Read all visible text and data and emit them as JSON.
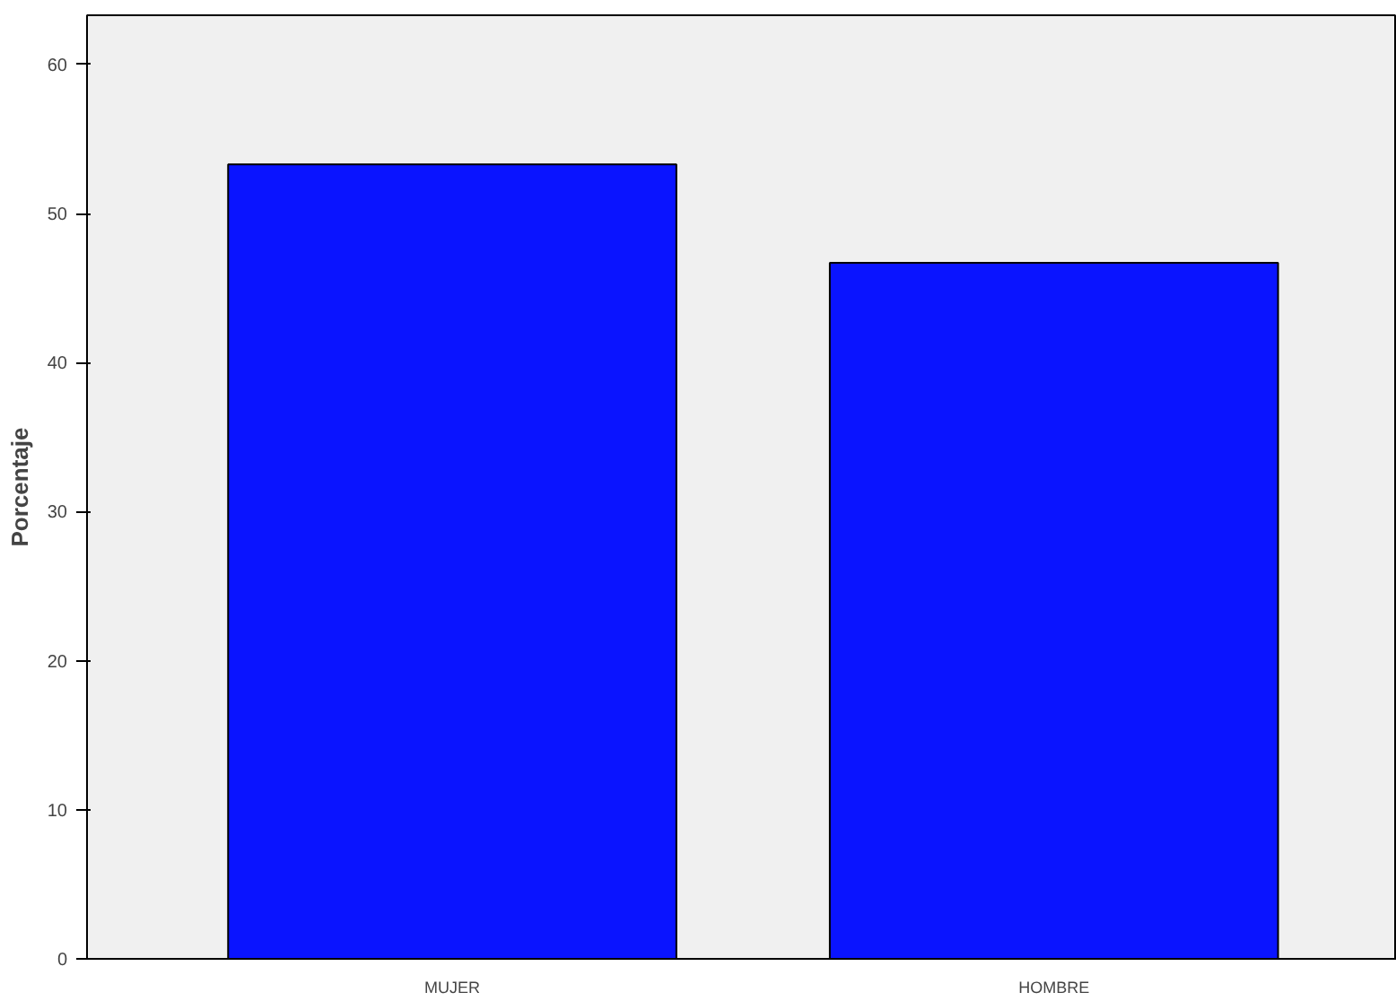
{
  "chart_data": {
    "type": "bar",
    "ylabel": "Porcentaje",
    "categories": [
      "MUJER",
      "HOMBRE"
    ],
    "values": [
      53.3,
      46.7
    ],
    "color": "#0a14ff",
    "ylim": [
      0,
      63.3
    ],
    "yticks": [
      0,
      10,
      20,
      30,
      40,
      50,
      60
    ],
    "grid": false
  }
}
